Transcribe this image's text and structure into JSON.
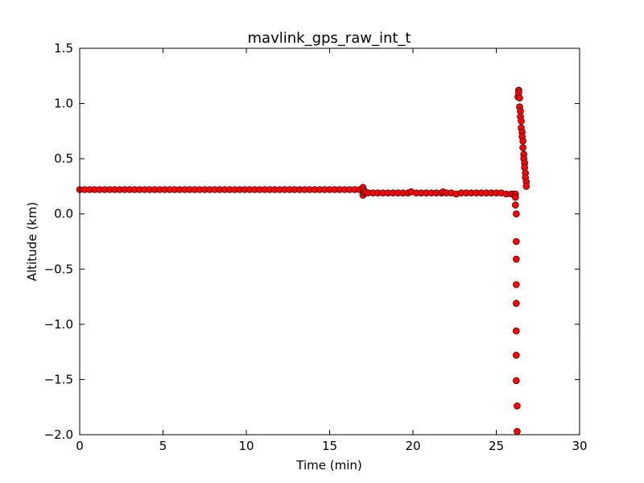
{
  "chart_data": {
    "type": "scatter",
    "title": "mavlink_gps_raw_int_t",
    "xlabel": "Time (min)",
    "ylabel": "Altitude (km)",
    "xlim": [
      0,
      30
    ],
    "ylim": [
      -2.0,
      1.5
    ],
    "xticks": [
      0,
      5,
      10,
      15,
      20,
      25,
      30
    ],
    "xtick_labels": [
      "0",
      "5",
      "10",
      "15",
      "20",
      "25",
      "30"
    ],
    "yticks": [
      -2.0,
      -1.5,
      -1.0,
      -0.5,
      0.0,
      0.5,
      1.0,
      1.5
    ],
    "ytick_labels": [
      "−2.0",
      "−1.5",
      "−1.0",
      "−0.5",
      "0.0",
      "0.5",
      "1.0",
      "1.5"
    ],
    "grid": false,
    "marker_color": "#ff0000",
    "marker_edge": "#000000",
    "series": [
      {
        "points": [
          [
            0.0,
            0.22
          ],
          [
            0.3,
            0.22
          ],
          [
            0.6,
            0.22
          ],
          [
            0.9,
            0.22
          ],
          [
            1.2,
            0.22
          ],
          [
            1.5,
            0.22
          ],
          [
            1.8,
            0.22
          ],
          [
            2.1,
            0.22
          ],
          [
            2.4,
            0.22
          ],
          [
            2.7,
            0.22
          ],
          [
            3.0,
            0.22
          ],
          [
            3.3,
            0.22
          ],
          [
            3.6,
            0.22
          ],
          [
            3.9,
            0.22
          ],
          [
            4.2,
            0.22
          ],
          [
            4.5,
            0.22
          ],
          [
            4.8,
            0.22
          ],
          [
            5.1,
            0.22
          ],
          [
            5.4,
            0.22
          ],
          [
            5.7,
            0.22
          ],
          [
            6.0,
            0.22
          ],
          [
            6.3,
            0.22
          ],
          [
            6.6,
            0.22
          ],
          [
            6.9,
            0.22
          ],
          [
            7.2,
            0.22
          ],
          [
            7.5,
            0.22
          ],
          [
            7.8,
            0.22
          ],
          [
            8.1,
            0.22
          ],
          [
            8.4,
            0.22
          ],
          [
            8.7,
            0.22
          ],
          [
            9.0,
            0.22
          ],
          [
            9.3,
            0.22
          ],
          [
            9.6,
            0.22
          ],
          [
            9.9,
            0.22
          ],
          [
            10.2,
            0.22
          ],
          [
            10.5,
            0.22
          ],
          [
            10.8,
            0.22
          ],
          [
            11.1,
            0.22
          ],
          [
            11.4,
            0.22
          ],
          [
            11.7,
            0.22
          ],
          [
            12.0,
            0.22
          ],
          [
            12.3,
            0.22
          ],
          [
            12.6,
            0.22
          ],
          [
            12.9,
            0.22
          ],
          [
            13.2,
            0.22
          ],
          [
            13.5,
            0.22
          ],
          [
            13.8,
            0.22
          ],
          [
            14.1,
            0.22
          ],
          [
            14.4,
            0.22
          ],
          [
            14.7,
            0.22
          ],
          [
            15.0,
            0.22
          ],
          [
            15.3,
            0.22
          ],
          [
            15.6,
            0.22
          ],
          [
            15.9,
            0.22
          ],
          [
            16.2,
            0.22
          ],
          [
            16.5,
            0.22
          ],
          [
            16.8,
            0.22
          ],
          [
            17.0,
            0.24
          ],
          [
            17.0,
            0.17
          ],
          [
            17.05,
            0.21
          ],
          [
            17.1,
            0.19
          ],
          [
            17.15,
            0.2
          ],
          [
            17.3,
            0.19
          ],
          [
            17.6,
            0.19
          ],
          [
            17.9,
            0.19
          ],
          [
            18.2,
            0.19
          ],
          [
            18.5,
            0.19
          ],
          [
            18.8,
            0.19
          ],
          [
            19.1,
            0.19
          ],
          [
            19.4,
            0.19
          ],
          [
            19.7,
            0.19
          ],
          [
            19.9,
            0.2
          ],
          [
            20.2,
            0.19
          ],
          [
            20.5,
            0.19
          ],
          [
            20.8,
            0.19
          ],
          [
            21.1,
            0.19
          ],
          [
            21.4,
            0.19
          ],
          [
            21.7,
            0.19
          ],
          [
            21.8,
            0.2
          ],
          [
            22.0,
            0.19
          ],
          [
            22.3,
            0.19
          ],
          [
            22.6,
            0.18
          ],
          [
            22.9,
            0.19
          ],
          [
            23.2,
            0.19
          ],
          [
            23.5,
            0.19
          ],
          [
            23.8,
            0.19
          ],
          [
            24.1,
            0.19
          ],
          [
            24.4,
            0.19
          ],
          [
            24.7,
            0.19
          ],
          [
            25.0,
            0.19
          ],
          [
            25.3,
            0.19
          ],
          [
            25.6,
            0.18
          ],
          [
            25.9,
            0.18
          ],
          [
            26.0,
            0.18
          ],
          [
            26.15,
            0.18
          ],
          [
            26.15,
            0.15
          ],
          [
            26.15,
            0.08
          ],
          [
            26.2,
            0.0
          ],
          [
            26.2,
            -0.25
          ],
          [
            26.2,
            -0.41
          ],
          [
            26.2,
            -0.64
          ],
          [
            26.2,
            -0.81
          ],
          [
            26.2,
            -1.06
          ],
          [
            26.2,
            -1.28
          ],
          [
            26.2,
            -1.51
          ],
          [
            26.25,
            -1.74
          ],
          [
            26.25,
            -1.97
          ],
          [
            26.3,
            1.06
          ],
          [
            26.35,
            1.12
          ],
          [
            26.35,
            1.1
          ],
          [
            26.4,
            1.05
          ],
          [
            26.4,
            0.97
          ],
          [
            26.45,
            0.93
          ],
          [
            26.45,
            0.88
          ],
          [
            26.5,
            0.84
          ],
          [
            26.5,
            0.78
          ],
          [
            26.55,
            0.74
          ],
          [
            26.55,
            0.7
          ],
          [
            26.6,
            0.66
          ],
          [
            26.6,
            0.6
          ],
          [
            26.65,
            0.54
          ],
          [
            26.65,
            0.5
          ],
          [
            26.7,
            0.46
          ],
          [
            26.7,
            0.42
          ],
          [
            26.75,
            0.37
          ],
          [
            26.75,
            0.33
          ],
          [
            26.8,
            0.29
          ],
          [
            26.8,
            0.25
          ]
        ]
      }
    ]
  }
}
